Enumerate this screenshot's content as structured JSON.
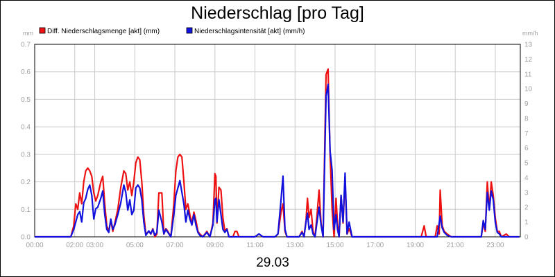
{
  "chart_data": {
    "type": "line",
    "title": "Niederschlag [pro Tag]",
    "date_label": "29.03",
    "y_left": {
      "unit": "mm",
      "lim": [
        0,
        0.7
      ],
      "ticks": [
        "0.0",
        "0.1",
        "0.2",
        "0.3",
        "0.4",
        "0.5",
        "0.6",
        "0.7"
      ]
    },
    "y_right": {
      "unit": "mm/h",
      "lim": [
        0,
        13
      ],
      "ticks": [
        "0",
        "1",
        "2",
        "3",
        "4",
        "5",
        "6",
        "7",
        "8",
        "9",
        "10",
        "11",
        "12",
        "13"
      ]
    },
    "x_lim": [
      0,
      24.25
    ],
    "x_ticks": [
      {
        "label": "00:00",
        "value": 0
      },
      {
        "label": "02:00",
        "value": 2
      },
      {
        "label": "03:00",
        "value": 3
      },
      {
        "label": "05:00",
        "value": 5
      },
      {
        "label": "07:00",
        "value": 7
      },
      {
        "label": "09:00",
        "value": 9
      },
      {
        "label": "11:00",
        "value": 11
      },
      {
        "label": "13:00",
        "value": 13
      },
      {
        "label": "15:00",
        "value": 15
      },
      {
        "label": "17:00",
        "value": 17
      },
      {
        "label": "19:00",
        "value": 19
      },
      {
        "label": "21:00",
        "value": 21
      },
      {
        "label": "23:00",
        "value": 23
      }
    ],
    "grid": true,
    "legend_position": "top-left",
    "series": [
      {
        "name": "Diff. Niederschlagsmenge [akt] (mm)",
        "color": "#ee1111",
        "axis": "left",
        "points": [
          [
            0,
            0
          ],
          [
            1.8,
            0
          ],
          [
            1.95,
            0.04
          ],
          [
            2.05,
            0.12
          ],
          [
            2.15,
            0.1
          ],
          [
            2.25,
            0.16
          ],
          [
            2.35,
            0.12
          ],
          [
            2.45,
            0.2
          ],
          [
            2.55,
            0.24
          ],
          [
            2.65,
            0.25
          ],
          [
            2.75,
            0.24
          ],
          [
            2.85,
            0.22
          ],
          [
            2.95,
            0.16
          ],
          [
            3.05,
            0.13
          ],
          [
            3.15,
            0.15
          ],
          [
            3.3,
            0.2
          ],
          [
            3.4,
            0.22
          ],
          [
            3.5,
            0.12
          ],
          [
            3.6,
            0.04
          ],
          [
            3.7,
            0.02
          ],
          [
            3.8,
            0.06
          ],
          [
            3.9,
            0.02
          ],
          [
            4.0,
            0.05
          ],
          [
            4.15,
            0.1
          ],
          [
            4.3,
            0.18
          ],
          [
            4.45,
            0.24
          ],
          [
            4.55,
            0.23
          ],
          [
            4.65,
            0.17
          ],
          [
            4.75,
            0.2
          ],
          [
            4.85,
            0.15
          ],
          [
            4.95,
            0.2
          ],
          [
            5.05,
            0.27
          ],
          [
            5.15,
            0.29
          ],
          [
            5.25,
            0.28
          ],
          [
            5.35,
            0.2
          ],
          [
            5.45,
            0.08
          ],
          [
            5.55,
            0.01
          ],
          [
            5.7,
            0.02
          ],
          [
            5.8,
            0.01
          ],
          [
            5.9,
            0.03
          ],
          [
            6.0,
            0.0
          ],
          [
            6.1,
            0.01
          ],
          [
            6.2,
            0.16
          ],
          [
            6.35,
            0.16
          ],
          [
            6.45,
            0.01
          ],
          [
            6.55,
            0.03
          ],
          [
            6.65,
            0.02
          ],
          [
            6.8,
            0.0
          ],
          [
            6.95,
            0.12
          ],
          [
            7.05,
            0.24
          ],
          [
            7.15,
            0.29
          ],
          [
            7.25,
            0.3
          ],
          [
            7.35,
            0.29
          ],
          [
            7.45,
            0.2
          ],
          [
            7.55,
            0.1
          ],
          [
            7.65,
            0.12
          ],
          [
            7.75,
            0.08
          ],
          [
            7.85,
            0.05
          ],
          [
            7.95,
            0.09
          ],
          [
            8.05,
            0.06
          ],
          [
            8.15,
            0.02
          ],
          [
            8.25,
            0.01
          ],
          [
            8.4,
            0.0
          ],
          [
            8.6,
            0.02
          ],
          [
            8.75,
            0.0
          ],
          [
            8.9,
            0.05
          ],
          [
            9.0,
            0.23
          ],
          [
            9.05,
            0.22
          ],
          [
            9.1,
            0.05
          ],
          [
            9.2,
            0.18
          ],
          [
            9.3,
            0.17
          ],
          [
            9.4,
            0.07
          ],
          [
            9.5,
            0.02
          ],
          [
            9.6,
            0.03
          ],
          [
            9.7,
            0.0
          ],
          [
            9.9,
            0.0
          ],
          [
            10.0,
            0.02
          ],
          [
            10.1,
            0.02
          ],
          [
            10.2,
            0.0
          ],
          [
            11.0,
            0.0
          ],
          [
            11.2,
            0.01
          ],
          [
            11.4,
            0.0
          ],
          [
            12.0,
            0.0
          ],
          [
            12.15,
            0.01
          ],
          [
            12.3,
            0.09
          ],
          [
            12.4,
            0.12
          ],
          [
            12.5,
            0.02
          ],
          [
            12.6,
            0.0
          ],
          [
            13.2,
            0.0
          ],
          [
            13.35,
            0.02
          ],
          [
            13.45,
            0.0
          ],
          [
            13.55,
            0.06
          ],
          [
            13.62,
            0.14
          ],
          [
            13.7,
            0.07
          ],
          [
            13.8,
            0.1
          ],
          [
            13.9,
            0.02
          ],
          [
            14.0,
            0.0
          ],
          [
            14.1,
            0.08
          ],
          [
            14.2,
            0.17
          ],
          [
            14.3,
            0.05
          ],
          [
            14.4,
            0.0
          ],
          [
            14.55,
            0.59
          ],
          [
            14.65,
            0.61
          ],
          [
            14.75,
            0.3
          ],
          [
            14.85,
            0.1
          ],
          [
            14.95,
            0.0
          ],
          [
            15.05,
            0.14
          ],
          [
            15.12,
            0.05
          ],
          [
            15.2,
            0.0
          ],
          [
            15.3,
            0.15
          ],
          [
            15.4,
            0.05
          ],
          [
            15.5,
            0.21
          ],
          [
            15.6,
            0.01
          ],
          [
            15.7,
            0.03
          ],
          [
            15.85,
            0.0
          ],
          [
            19.3,
            0.0
          ],
          [
            19.45,
            0.04
          ],
          [
            19.55,
            0.0
          ],
          [
            20.0,
            0.0
          ],
          [
            20.1,
            0.04
          ],
          [
            20.2,
            0.01
          ],
          [
            20.25,
            0.17
          ],
          [
            20.35,
            0.04
          ],
          [
            20.45,
            0.02
          ],
          [
            20.6,
            0.01
          ],
          [
            20.8,
            0.0
          ],
          [
            22.3,
            0.0
          ],
          [
            22.4,
            0.05
          ],
          [
            22.5,
            0.02
          ],
          [
            22.6,
            0.2
          ],
          [
            22.7,
            0.1
          ],
          [
            22.8,
            0.2
          ],
          [
            22.9,
            0.15
          ],
          [
            23.0,
            0.07
          ],
          [
            23.1,
            0.02
          ],
          [
            23.2,
            0.02
          ],
          [
            23.3,
            0.0
          ],
          [
            23.55,
            0.01
          ],
          [
            23.7,
            0.0
          ],
          [
            24.2,
            0.0
          ]
        ]
      },
      {
        "name": "Niederschlagsintensität [akt] (mm/h)",
        "color": "#1111dd",
        "axis": "right",
        "points": [
          [
            0,
            0
          ],
          [
            1.8,
            0
          ],
          [
            1.95,
            0.5
          ],
          [
            2.05,
            1.0
          ],
          [
            2.15,
            1.5
          ],
          [
            2.25,
            1.7
          ],
          [
            2.35,
            1.0
          ],
          [
            2.45,
            2.3
          ],
          [
            2.55,
            2.6
          ],
          [
            2.65,
            3.2
          ],
          [
            2.75,
            3.5
          ],
          [
            2.85,
            2.8
          ],
          [
            2.95,
            1.2
          ],
          [
            3.05,
            1.9
          ],
          [
            3.15,
            2.0
          ],
          [
            3.3,
            2.6
          ],
          [
            3.4,
            3.1
          ],
          [
            3.5,
            1.5
          ],
          [
            3.6,
            0.5
          ],
          [
            3.7,
            0.3
          ],
          [
            3.8,
            1.2
          ],
          [
            3.9,
            0.5
          ],
          [
            4.0,
            0.8
          ],
          [
            4.15,
            1.5
          ],
          [
            4.3,
            2.3
          ],
          [
            4.45,
            3.5
          ],
          [
            4.55,
            3.0
          ],
          [
            4.65,
            1.8
          ],
          [
            4.75,
            2.5
          ],
          [
            4.85,
            1.5
          ],
          [
            4.95,
            1.8
          ],
          [
            5.05,
            3.3
          ],
          [
            5.15,
            3.5
          ],
          [
            5.25,
            3.3
          ],
          [
            5.35,
            2.5
          ],
          [
            5.45,
            1.0
          ],
          [
            5.55,
            0.1
          ],
          [
            5.7,
            0.4
          ],
          [
            5.8,
            0.2
          ],
          [
            5.9,
            0.5
          ],
          [
            6.0,
            0.1
          ],
          [
            6.1,
            0.3
          ],
          [
            6.2,
            1.8
          ],
          [
            6.35,
            1.0
          ],
          [
            6.45,
            0.2
          ],
          [
            6.55,
            0.5
          ],
          [
            6.65,
            0.3
          ],
          [
            6.8,
            0.0
          ],
          [
            6.95,
            1.5
          ],
          [
            7.05,
            2.8
          ],
          [
            7.15,
            3.3
          ],
          [
            7.25,
            3.8
          ],
          [
            7.35,
            3.0
          ],
          [
            7.45,
            2.2
          ],
          [
            7.55,
            1.0
          ],
          [
            7.65,
            1.8
          ],
          [
            7.75,
            1.2
          ],
          [
            7.85,
            0.8
          ],
          [
            7.95,
            1.5
          ],
          [
            8.05,
            0.8
          ],
          [
            8.15,
            0.3
          ],
          [
            8.25,
            0.1
          ],
          [
            8.4,
            0.0
          ],
          [
            8.6,
            0.3
          ],
          [
            8.75,
            0.0
          ],
          [
            8.9,
            0.8
          ],
          [
            9.0,
            2.5
          ],
          [
            9.05,
            2.6
          ],
          [
            9.1,
            1.0
          ],
          [
            9.2,
            2.5
          ],
          [
            9.3,
            1.5
          ],
          [
            9.4,
            0.5
          ],
          [
            9.5,
            0.3
          ],
          [
            9.6,
            0.5
          ],
          [
            9.7,
            0.0
          ],
          [
            11.0,
            0.0
          ],
          [
            11.2,
            0.2
          ],
          [
            11.4,
            0.0
          ],
          [
            12.0,
            0.0
          ],
          [
            12.15,
            0.2
          ],
          [
            12.3,
            2.5
          ],
          [
            12.4,
            4.1
          ],
          [
            12.5,
            0.5
          ],
          [
            12.6,
            0.0
          ],
          [
            13.2,
            0.0
          ],
          [
            13.35,
            0.3
          ],
          [
            13.45,
            0.0
          ],
          [
            13.55,
            1.0
          ],
          [
            13.62,
            1.6
          ],
          [
            13.7,
            0.5
          ],
          [
            13.8,
            0.8
          ],
          [
            13.9,
            0.2
          ],
          [
            14.0,
            0.0
          ],
          [
            14.1,
            1.0
          ],
          [
            14.2,
            2.0
          ],
          [
            14.3,
            0.8
          ],
          [
            14.4,
            0.0
          ],
          [
            14.55,
            9.5
          ],
          [
            14.65,
            10.3
          ],
          [
            14.75,
            5.8
          ],
          [
            14.85,
            4.5
          ],
          [
            14.95,
            0.5
          ],
          [
            15.05,
            1.5
          ],
          [
            15.12,
            0.5
          ],
          [
            15.2,
            0.0
          ],
          [
            15.3,
            2.8
          ],
          [
            15.4,
            1.0
          ],
          [
            15.5,
            4.3
          ],
          [
            15.6,
            0.2
          ],
          [
            15.7,
            1.0
          ],
          [
            15.85,
            0.0
          ],
          [
            20.1,
            0.0
          ],
          [
            20.25,
            1.4
          ],
          [
            20.35,
            0.6
          ],
          [
            20.45,
            0.3
          ],
          [
            20.6,
            0.1
          ],
          [
            20.8,
            0.0
          ],
          [
            22.3,
            0.0
          ],
          [
            22.4,
            1.1
          ],
          [
            22.5,
            0.5
          ],
          [
            22.6,
            3.0
          ],
          [
            22.7,
            1.8
          ],
          [
            22.8,
            3.1
          ],
          [
            22.9,
            2.5
          ],
          [
            23.0,
            1.0
          ],
          [
            23.1,
            0.3
          ],
          [
            23.2,
            0.2
          ],
          [
            23.3,
            0.0
          ],
          [
            24.2,
            0.0
          ]
        ]
      }
    ]
  }
}
